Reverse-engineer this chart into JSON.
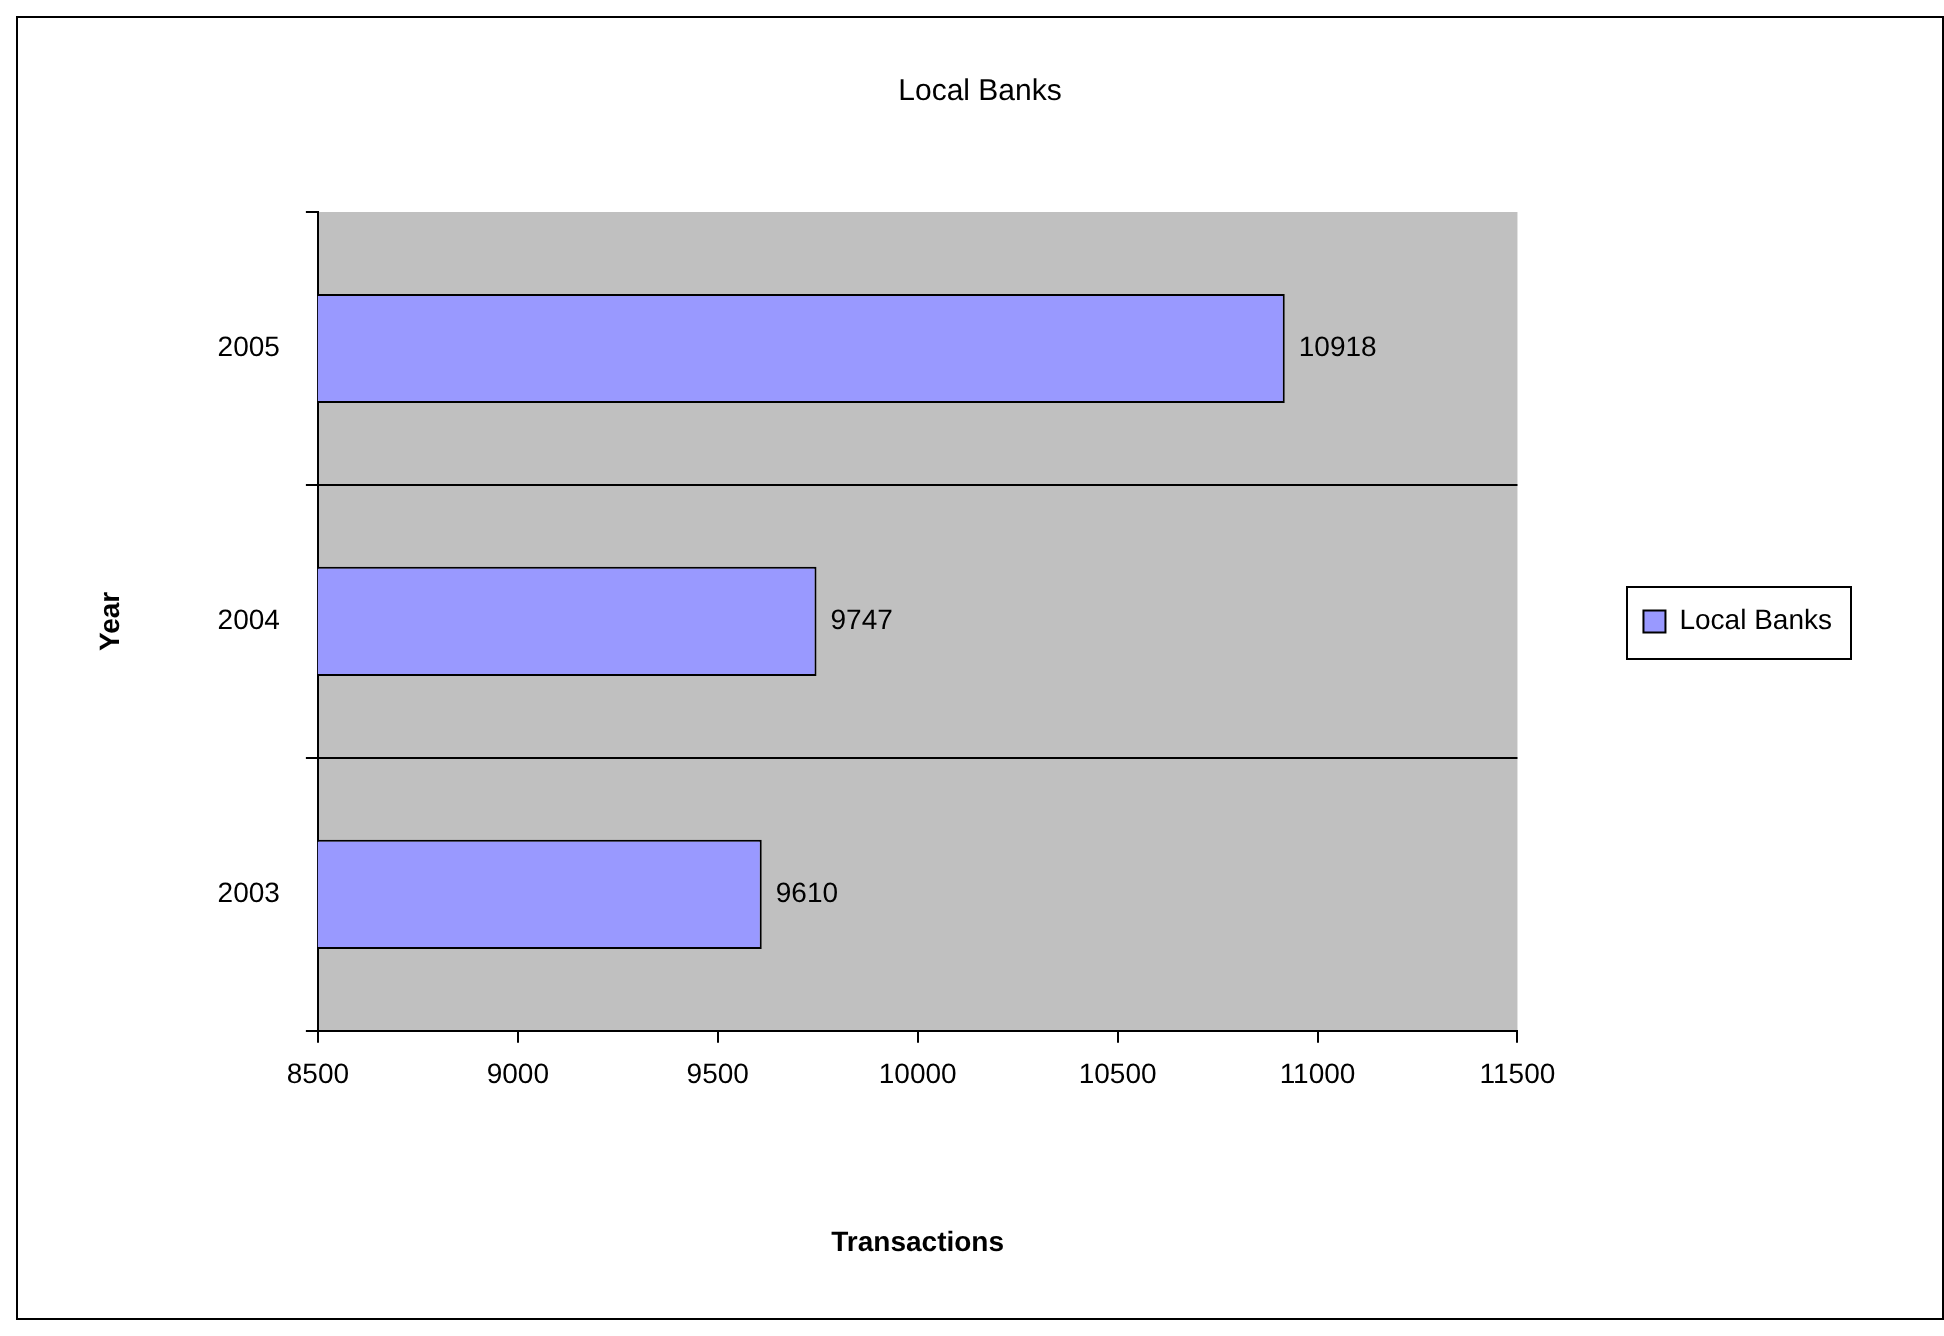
{
  "chart_data": {
    "type": "bar",
    "orientation": "horizontal",
    "title": "Local Banks",
    "xlabel": "Transactions",
    "ylabel": "Year",
    "categories": [
      "2005",
      "2004",
      "2003"
    ],
    "series": [
      {
        "name": "Local Banks",
        "color": "#9999ff",
        "values": [
          10918,
          9747,
          9610
        ]
      }
    ],
    "xlim": [
      8500,
      11500
    ],
    "xticks": [
      8500,
      9000,
      9500,
      10000,
      10500,
      11000,
      11500
    ],
    "grid": "y",
    "legend": "right",
    "data_labels": true
  }
}
